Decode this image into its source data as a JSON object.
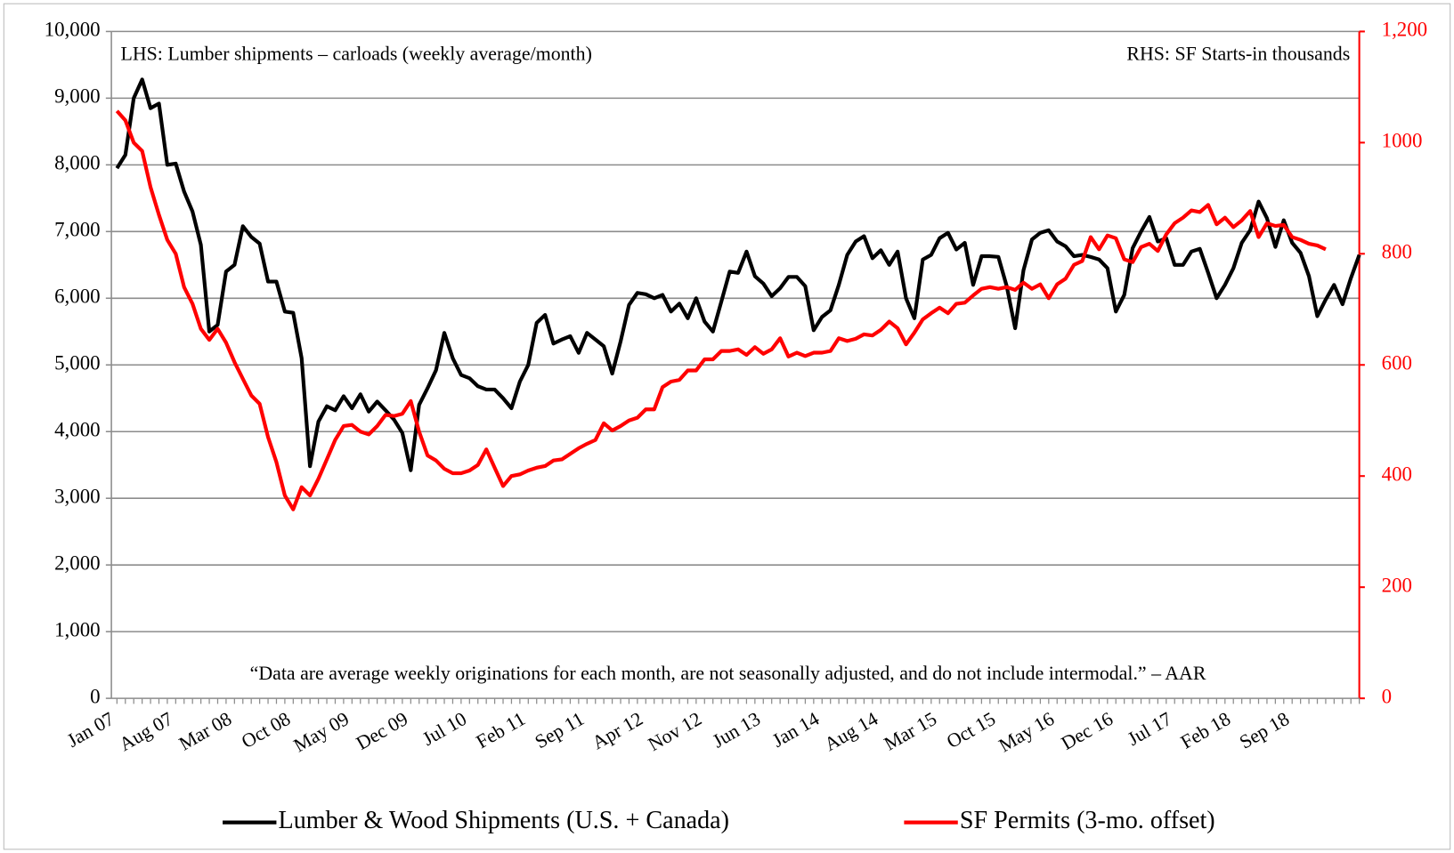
{
  "chart_data": {
    "type": "line",
    "annotations": [
      "LHS: Lumber shipments – carloads (weekly average/month)",
      "RHS: SF Starts-in thousands",
      "“Data are average weekly originations for each month, are not seasonally adjusted, and do not include intermodal.” –  AAR"
    ],
    "categories": [
      "Jan 07",
      null,
      null,
      null,
      null,
      null,
      null,
      "Aug 07",
      null,
      null,
      null,
      null,
      null,
      null,
      "Mar 08",
      null,
      null,
      null,
      null,
      null,
      null,
      "Oct 08",
      null,
      null,
      null,
      null,
      null,
      null,
      "May 09",
      null,
      null,
      null,
      null,
      null,
      null,
      "Dec 09",
      null,
      null,
      null,
      null,
      null,
      null,
      "Jul 10",
      null,
      null,
      null,
      null,
      null,
      null,
      "Feb 11",
      null,
      null,
      null,
      null,
      null,
      null,
      "Sep 11",
      null,
      null,
      null,
      null,
      null,
      null,
      "Apr 12",
      null,
      null,
      null,
      null,
      null,
      null,
      "Nov 12",
      null,
      null,
      null,
      null,
      null,
      null,
      "Jun 13",
      null,
      null,
      null,
      null,
      null,
      null,
      "Jan 14",
      null,
      null,
      null,
      null,
      null,
      null,
      "Aug 14",
      null,
      null,
      null,
      null,
      null,
      null,
      "Mar 15",
      null,
      null,
      null,
      null,
      null,
      null,
      "Oct 15",
      null,
      null,
      null,
      null,
      null,
      null,
      "May 16",
      null,
      null,
      null,
      null,
      null,
      null,
      "Dec 16",
      null,
      null,
      null,
      null,
      null,
      null,
      "Jul 17",
      null,
      null,
      null,
      null,
      null,
      null,
      "Feb 18",
      null,
      null,
      null,
      null,
      null,
      null,
      "Sep 18",
      null,
      null,
      null,
      null,
      null,
      null,
      null,
      null
    ],
    "series": [
      {
        "name": "Lumber & Wood Shipments (U.S. + Canada)",
        "color": "#000000",
        "axis": "y",
        "values": [
          7950,
          8150,
          9000,
          9280,
          8850,
          8920,
          8000,
          8020,
          7600,
          7300,
          6800,
          5500,
          5600,
          6400,
          6500,
          7080,
          6920,
          6820,
          6250,
          6250,
          5800,
          5780,
          5100,
          3480,
          4150,
          4380,
          4320,
          4530,
          4350,
          4560,
          4300,
          4450,
          4320,
          4180,
          3980,
          3420,
          4400,
          4650,
          4920,
          5480,
          5100,
          4850,
          4800,
          4680,
          4630,
          4630,
          4500,
          4350,
          4750,
          5000,
          5630,
          5750,
          5320,
          5380,
          5430,
          5180,
          5480,
          5380,
          5280,
          4870,
          5350,
          5900,
          6080,
          6060,
          6000,
          6050,
          5800,
          5920,
          5700,
          6000,
          5650,
          5500,
          5950,
          6400,
          6380,
          6700,
          6330,
          6220,
          6030,
          6150,
          6320,
          6320,
          6180,
          5520,
          5720,
          5820,
          6200,
          6650,
          6850,
          6930,
          6600,
          6720,
          6500,
          6700,
          6000,
          5700,
          6580,
          6650,
          6900,
          6980,
          6730,
          6830,
          6200,
          6630,
          6630,
          6620,
          6180,
          5550,
          6420,
          6880,
          6980,
          7020,
          6850,
          6780,
          6630,
          6650,
          6620,
          6580,
          6450,
          5800,
          6050,
          6750,
          7000,
          7220,
          6850,
          6900,
          6500,
          6500,
          6700,
          6740,
          6380,
          6000,
          6200,
          6450,
          6830,
          7020,
          7450,
          7200,
          6770,
          7170,
          6830,
          6680,
          6330,
          5730,
          5980,
          6200,
          5910,
          6300,
          6650
        ]
      },
      {
        "name": "SF Permits (3-mo. offset)",
        "color": "#ff0000",
        "axis": "y2",
        "values": [
          1057,
          1040,
          1000,
          985,
          920,
          870,
          825,
          800,
          740,
          710,
          665,
          645,
          665,
          640,
          605,
          575,
          545,
          530,
          470,
          425,
          365,
          340,
          380,
          365,
          395,
          430,
          465,
          490,
          492,
          480,
          475,
          490,
          510,
          508,
          512,
          535,
          480,
          437,
          428,
          413,
          405,
          405,
          410,
          420,
          448,
          415,
          382,
          400,
          403,
          410,
          415,
          418,
          428,
          430,
          440,
          450,
          458,
          465,
          495,
          482,
          490,
          500,
          505,
          520,
          520,
          560,
          570,
          573,
          590,
          590,
          610,
          610,
          625,
          625,
          628,
          618,
          632,
          620,
          628,
          648,
          615,
          622,
          616,
          622,
          622,
          625,
          648,
          643,
          647,
          655,
          653,
          663,
          678,
          666,
          637,
          658,
          682,
          693,
          703,
          693,
          710,
          712,
          725,
          737,
          740,
          737,
          740,
          735,
          748,
          737,
          745,
          720,
          745,
          755,
          780,
          787,
          830,
          808,
          833,
          828,
          790,
          785,
          812,
          818,
          805,
          835,
          855,
          865,
          878,
          875,
          888,
          853,
          865,
          848,
          860,
          877,
          830,
          855,
          850,
          852,
          830,
          825,
          818,
          815,
          808,
          null,
          null,
          null,
          null
        ]
      }
    ],
    "ylim": [
      0,
      10000
    ],
    "yticks": [
      0,
      {
        "value": 1000,
        "label": "1,000"
      },
      {
        "value": 2000,
        "label": "2,000"
      },
      {
        "value": 3000,
        "label": "3,000"
      },
      {
        "value": 4000,
        "label": "4,000"
      },
      {
        "value": 5000,
        "label": "5,000"
      },
      {
        "value": 6000,
        "label": "6,000"
      },
      {
        "value": 7000,
        "label": "7,000"
      },
      {
        "value": 8000,
        "label": "8,000"
      },
      {
        "value": 9000,
        "label": "9,000"
      },
      {
        "value": 10000,
        "label": "10,000"
      }
    ],
    "y2lim": [
      0,
      1200
    ],
    "y2ticks": [
      0,
      200,
      400,
      600,
      800,
      1000,
      {
        "value": 1200,
        "label": "1,200"
      }
    ],
    "y2color": "#ff0000",
    "grid": true,
    "legend": "bottom"
  }
}
